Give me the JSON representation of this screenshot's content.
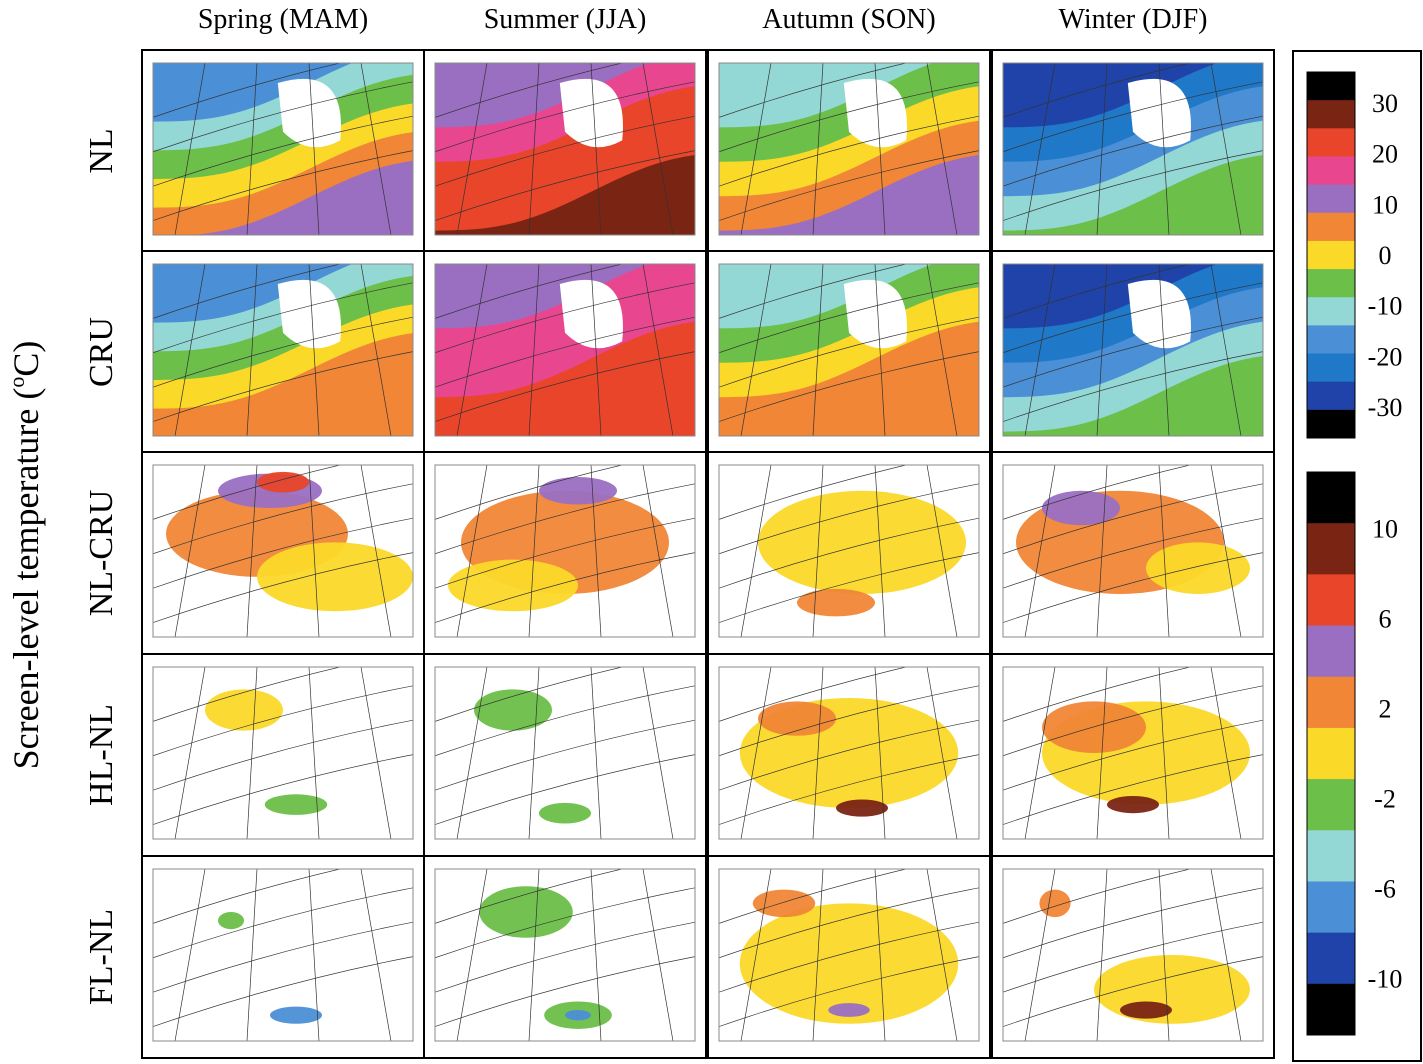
{
  "columns": [
    "Spring (MAM)",
    "Summer (JJA)",
    "Autumn (SON)",
    "Winter (DJF)"
  ],
  "rows": [
    "NL",
    "CRU",
    "NL-CRU",
    "HL-NL",
    "FL-NL"
  ],
  "y_label": {
    "before": "Screen-level temperature (",
    "sup": "o",
    "after": "C)"
  },
  "colorbars": [
    {
      "ticks": [
        "30",
        "20",
        "10",
        "0",
        "-10",
        "-20",
        "-30"
      ],
      "colors": [
        "#000000",
        "#7a2414",
        "#e8452a",
        "#e8468f",
        "#9a6fc2",
        "#f08636",
        "#fbd928",
        "#6cbf48",
        "#93d8d5",
        "#4b8fd6",
        "#1f78c8",
        "#1f43a8",
        "#000000"
      ]
    },
    {
      "ticks": [
        "10",
        "6",
        "2",
        "-2",
        "-6",
        "-10"
      ],
      "colors": [
        "#000000",
        "#7a2414",
        "#e8452a",
        "#9a6fc2",
        "#f08636",
        "#fbd928",
        "#6cbf48",
        "#93d8d5",
        "#4b8fd6",
        "#1f43a8",
        "#000000"
      ]
    }
  ]
}
